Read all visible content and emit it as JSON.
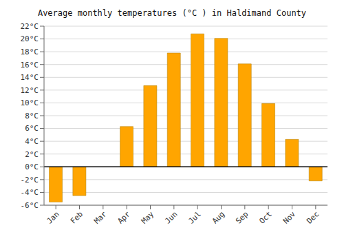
{
  "chart_data": {
    "type": "bar",
    "title": "Average monthly temperatures (°C ) in Haldimand County",
    "categories": [
      "Jan",
      "Feb",
      "Mar",
      "Apr",
      "May",
      "Jun",
      "Jul",
      "Aug",
      "Sep",
      "Oct",
      "Nov",
      "Dec"
    ],
    "values": [
      -5.5,
      -4.5,
      0,
      6.3,
      12.7,
      17.8,
      20.8,
      20.1,
      16.1,
      9.9,
      4.3,
      -2.2
    ],
    "color": "#FFA500",
    "ylim": [
      -6,
      22
    ],
    "yticks": [
      {
        "value": -6,
        "label": "-6°C"
      },
      {
        "value": -4,
        "label": "-4°C"
      },
      {
        "value": -2,
        "label": "-2°C"
      },
      {
        "value": 0,
        "label": "0°C"
      },
      {
        "value": 2,
        "label": "2°C"
      },
      {
        "value": 4,
        "label": "4°C"
      },
      {
        "value": 6,
        "label": "6°C"
      },
      {
        "value": 8,
        "label": "8°C"
      },
      {
        "value": 10,
        "label": "10°C"
      },
      {
        "value": 12,
        "label": "12°C"
      },
      {
        "value": 14,
        "label": "14°C"
      },
      {
        "value": 16,
        "label": "16°C"
      },
      {
        "value": 18,
        "label": "18°C"
      },
      {
        "value": 20,
        "label": "20°C"
      },
      {
        "value": 22,
        "label": "22°C"
      }
    ],
    "grid": true
  }
}
